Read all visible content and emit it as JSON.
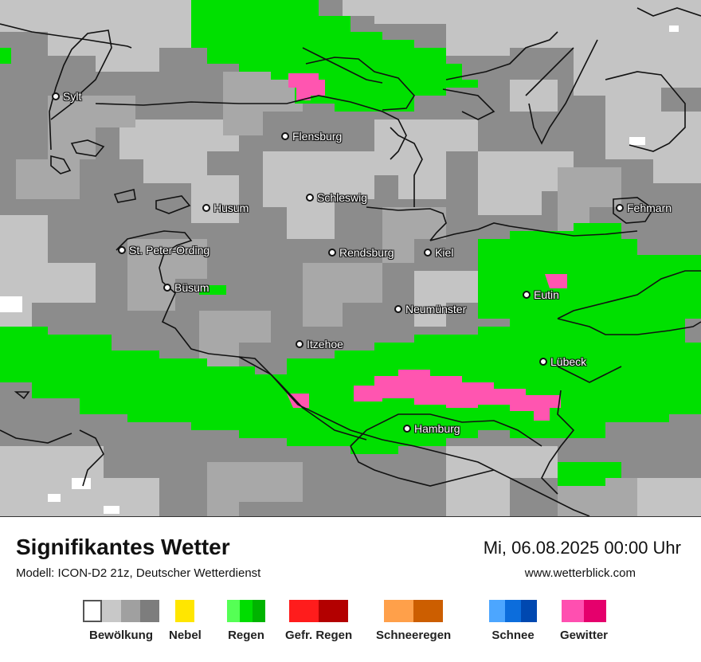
{
  "map": {
    "cities": [
      {
        "name": "Sylt"
      },
      {
        "name": "Flensburg"
      },
      {
        "name": "Schleswig"
      },
      {
        "name": "Husum"
      },
      {
        "name": "Fehmarn"
      },
      {
        "name": "St. Peter-Ording"
      },
      {
        "name": "Rendsburg"
      },
      {
        "name": "Kiel"
      },
      {
        "name": "Büsum"
      },
      {
        "name": "Eutin"
      },
      {
        "name": "Neumünster"
      },
      {
        "name": "Itzehoe"
      },
      {
        "name": "Lübeck"
      },
      {
        "name": "Hamburg"
      }
    ],
    "colors": {
      "cloud_light": "#c4c4c4",
      "cloud_mid": "#a8a8a8",
      "cloud_dark": "#8c8c8c",
      "rain": "#00e000",
      "thunder": "#ff55b0"
    }
  },
  "footer": {
    "title": "Signifikantes Wetter",
    "subtitle": "Modell: ICON-D2 21z, Deutscher Wetterdienst",
    "datetime": "Mi, 06.08.2025 00:00 Uhr",
    "website": "www.wetterblick.com"
  },
  "legend": [
    {
      "label": "Bewölkung",
      "colors": [
        "#ffffff",
        "#c8c8c8",
        "#a0a0a0",
        "#7d7d7d"
      ]
    },
    {
      "label": "Nebel",
      "colors": [
        "#ffe600"
      ]
    },
    {
      "label": "Regen",
      "colors": [
        "#55ff55",
        "#00dd00",
        "#00b400"
      ]
    },
    {
      "label": "Gefr. Regen",
      "colors": [
        "#ff1c1c",
        "#b30000"
      ]
    },
    {
      "label": "Schneeregen",
      "colors": [
        "#ffa04a",
        "#cc5e00"
      ]
    },
    {
      "label": "Schnee",
      "colors": [
        "#4ca6ff",
        "#0c6ddc",
        "#0048b0"
      ]
    },
    {
      "label": "Gewitter",
      "colors": [
        "#ff4fb0",
        "#e5006c"
      ]
    }
  ]
}
